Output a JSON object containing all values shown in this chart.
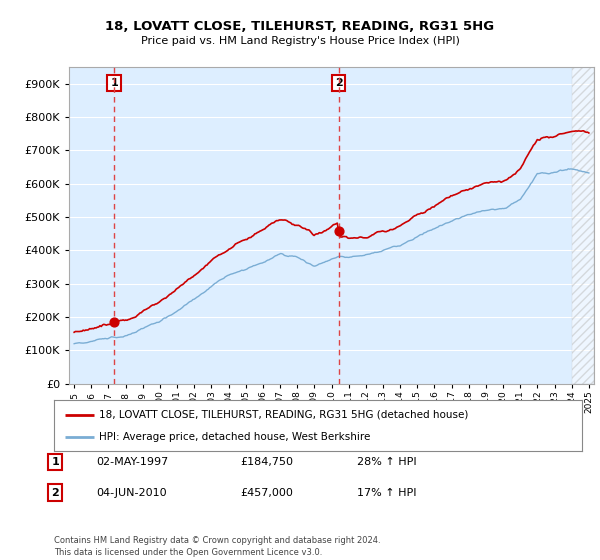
{
  "title": "18, LOVATT CLOSE, TILEHURST, READING, RG31 5HG",
  "subtitle": "Price paid vs. HM Land Registry's House Price Index (HPI)",
  "legend_line1": "18, LOVATT CLOSE, TILEHURST, READING, RG31 5HG (detached house)",
  "legend_line2": "HPI: Average price, detached house, West Berkshire",
  "transaction1_date": "02-MAY-1997",
  "transaction1_price": "£184,750",
  "transaction1_hpi": "28% ↑ HPI",
  "transaction2_date": "04-JUN-2010",
  "transaction2_price": "£457,000",
  "transaction2_hpi": "17% ↑ HPI",
  "footnote": "Contains HM Land Registry data © Crown copyright and database right 2024.\nThis data is licensed under the Open Government Licence v3.0.",
  "red_color": "#CC0000",
  "blue_color": "#7aadd4",
  "dashed_red": "#dd4444",
  "background_plot": "#ddeeff",
  "background_fig": "#FFFFFF",
  "grid_color": "#FFFFFF",
  "ylim": [
    0,
    950000
  ],
  "yticks": [
    0,
    100000,
    200000,
    300000,
    400000,
    500000,
    600000,
    700000,
    800000,
    900000
  ],
  "xlim_start": 1994.7,
  "xlim_end": 2025.3,
  "trans1_year": 1997.35,
  "trans1_price_val": 184750,
  "trans2_year": 2010.45,
  "trans2_price_val": 457000
}
